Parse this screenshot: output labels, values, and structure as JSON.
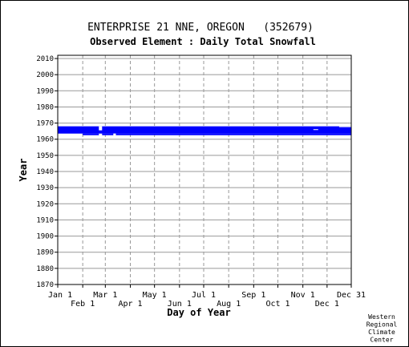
{
  "chart_data": {
    "type": "bar",
    "title": "ENTERPRISE 21 NNE, OREGON   (352679)",
    "subtitle": "Observed Element : Daily Total Snowfall",
    "xlabel": "Day of Year",
    "ylabel": "Year",
    "credit": [
      "Western",
      "Regional",
      "Climate",
      "Center"
    ],
    "xlim": [
      1,
      365
    ],
    "ylim": [
      1870,
      2012
    ],
    "grid": true,
    "x_ticks_top": [
      {
        "label": "Jan 1",
        "day": 1
      },
      {
        "label": "Mar 1",
        "day": 60
      },
      {
        "label": "May 1",
        "day": 121
      },
      {
        "label": "Jul 1",
        "day": 182
      },
      {
        "label": "Sep 1",
        "day": 244
      },
      {
        "label": "Nov 1",
        "day": 305
      },
      {
        "label": "Dec 31",
        "day": 365
      }
    ],
    "x_ticks_bottom": [
      {
        "label": "Feb 1",
        "day": 32
      },
      {
        "label": "Apr 1",
        "day": 91
      },
      {
        "label": "Jun 1",
        "day": 152
      },
      {
        "label": "Aug 1",
        "day": 213
      },
      {
        "label": "Oct 1",
        "day": 274
      },
      {
        "label": "Dec 1",
        "day": 335
      }
    ],
    "y_ticks": [
      2010,
      2000,
      1990,
      1980,
      1970,
      1960,
      1950,
      1940,
      1930,
      1920,
      1910,
      1900,
      1890,
      1880,
      1870
    ],
    "series": [
      {
        "color": "#0000ff",
        "values": [
          {
            "start_day": 1,
            "end_day": 365,
            "year_start": 1963.5,
            "year_end": 1968
          },
          {
            "start_day": 32,
            "end_day": 52,
            "year_start": 1962.5,
            "year_end": 1963.5
          },
          {
            "start_day": 56,
            "end_day": 70,
            "year_start": 1962.5,
            "year_end": 1963.5
          },
          {
            "start_day": 73,
            "end_day": 365,
            "year_start": 1962.5,
            "year_end": 1963.5
          }
        ]
      }
    ],
    "gaps": [
      {
        "start_day": 52,
        "end_day": 56,
        "year_start": 1965.5,
        "year_end": 1968
      },
      {
        "start_day": 70,
        "end_day": 73,
        "year_start": 1962.5,
        "year_end": 1963.5
      },
      {
        "start_day": 318,
        "end_day": 324,
        "year_start": 1965.8,
        "year_end": 1966.2
      },
      {
        "start_day": 350,
        "end_day": 365,
        "year_start": 1967.5,
        "year_end": 1968
      }
    ]
  }
}
